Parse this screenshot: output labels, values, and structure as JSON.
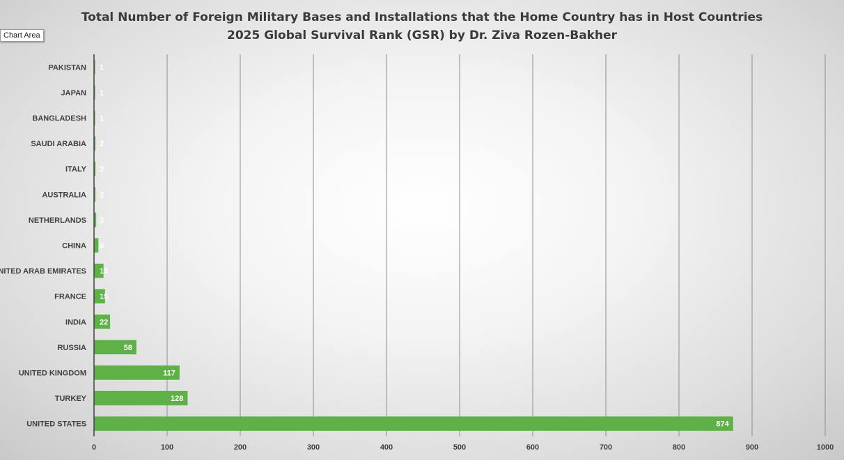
{
  "tooltip": "Chart Area",
  "chart_data": {
    "type": "bar",
    "orientation": "horizontal",
    "title": "Total Number of Foreign Military Bases and Installations that the Home Country has in Host Countries",
    "subtitle": "2025 Global Survival Rank (GSR) by Dr. Ziva Rozen-Bakher",
    "xlabel": "",
    "ylabel": "",
    "xlim": [
      0,
      1000
    ],
    "xticks": [
      0,
      100,
      200,
      300,
      400,
      500,
      600,
      700,
      800,
      900,
      1000
    ],
    "grid": true,
    "legend": "none",
    "bar_color": "#5db146",
    "categories": [
      "UNITED STATES",
      "TURKEY",
      "UNITED KINGDOM",
      "RUSSIA",
      "INDIA",
      "FRANCE",
      "UNITED ARAB EMIRATES",
      "CHINA",
      "NETHERLANDS",
      "AUSTRALIA",
      "ITALY",
      "SAUDI ARABIA",
      "BANGLADESH",
      "JAPAN",
      "PAKISTAN"
    ],
    "values": [
      874,
      128,
      117,
      58,
      22,
      15,
      13,
      6,
      3,
      2,
      2,
      2,
      1,
      1,
      1
    ]
  }
}
